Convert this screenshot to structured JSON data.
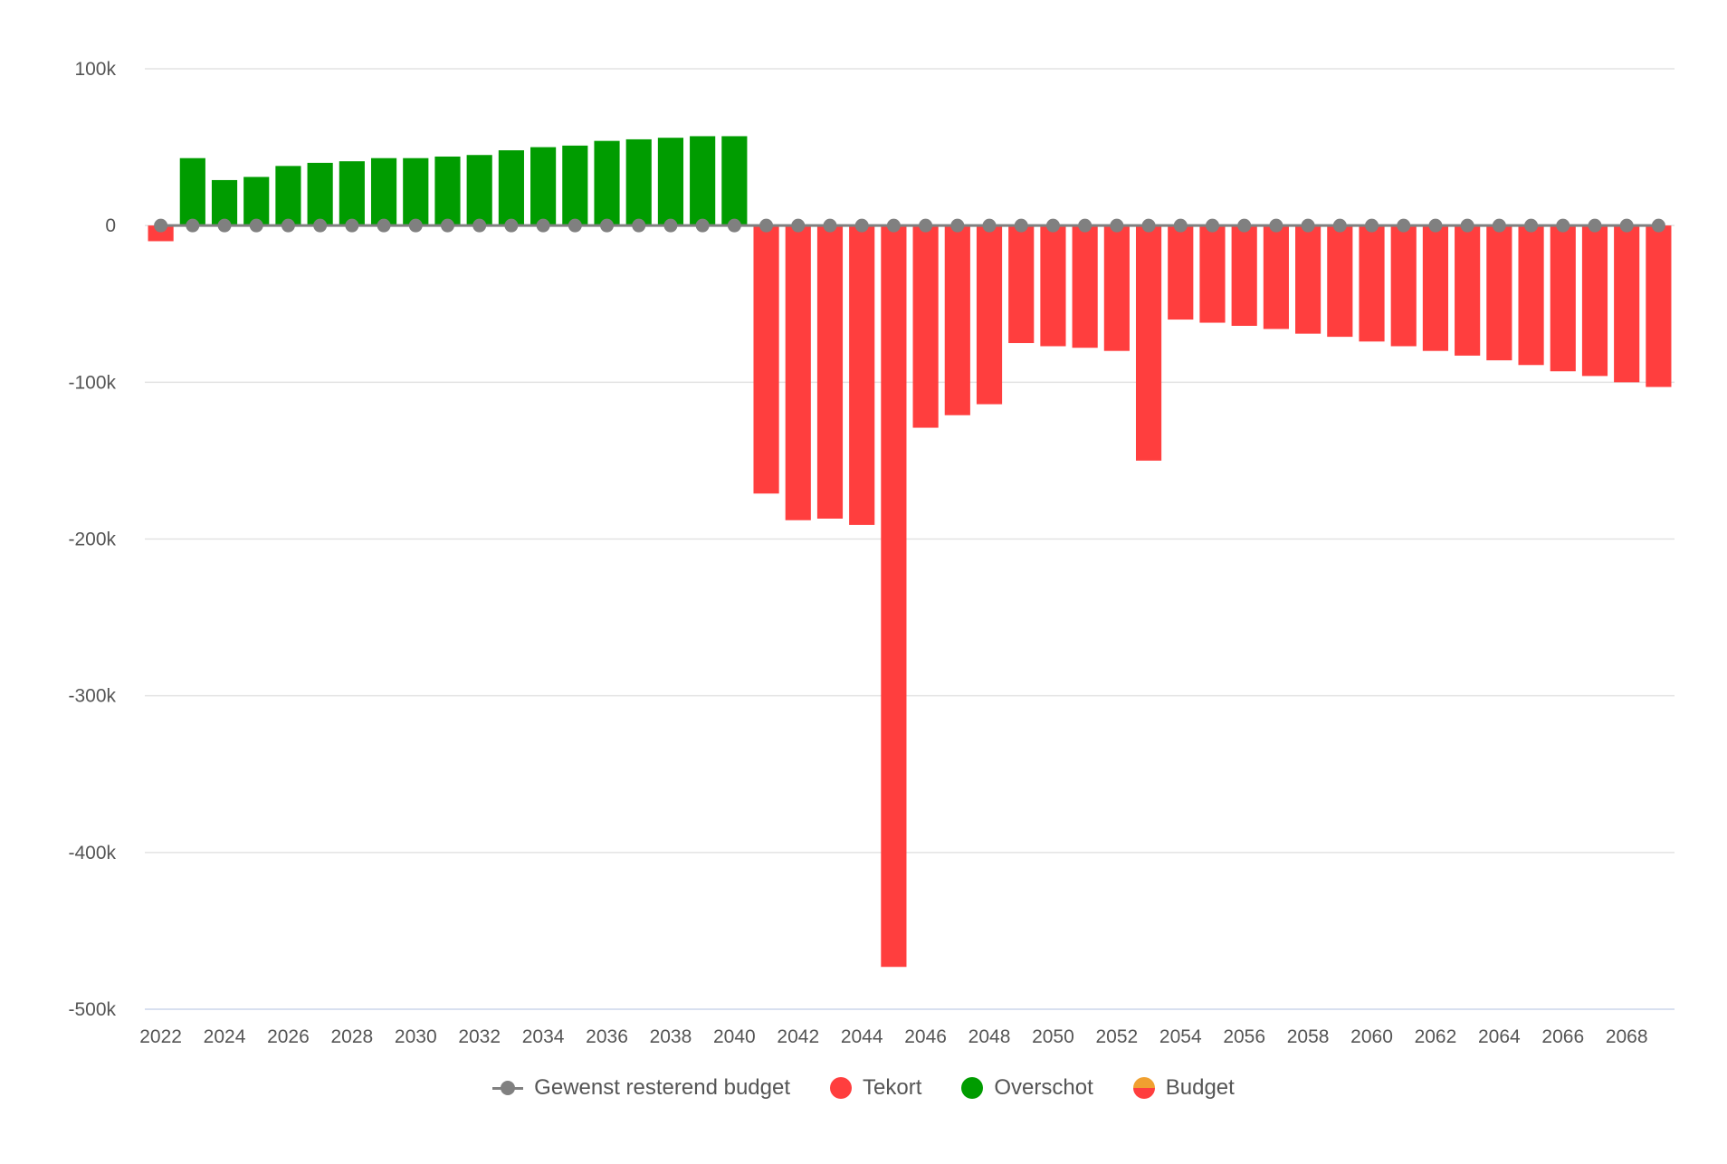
{
  "chart_data": {
    "type": "bar",
    "x": [
      2022,
      2023,
      2024,
      2025,
      2026,
      2027,
      2028,
      2029,
      2030,
      2031,
      2032,
      2033,
      2034,
      2035,
      2036,
      2037,
      2038,
      2039,
      2040,
      2041,
      2042,
      2043,
      2044,
      2045,
      2046,
      2047,
      2048,
      2049,
      2050,
      2051,
      2052,
      2053,
      2054,
      2055,
      2056,
      2057,
      2058,
      2059,
      2060,
      2061,
      2062,
      2063,
      2064,
      2065,
      2066,
      2067,
      2068,
      2069
    ],
    "values": [
      -10000,
      43000,
      29000,
      31000,
      38000,
      40000,
      41000,
      43000,
      43000,
      44000,
      45000,
      48000,
      50000,
      51000,
      54000,
      55000,
      56000,
      57000,
      57000,
      -171000,
      -188000,
      -187000,
      -191000,
      -473000,
      -129000,
      -121000,
      -114000,
      -75000,
      -77000,
      -78000,
      -80000,
      -150000,
      -60000,
      -62000,
      -64000,
      -66000,
      -69000,
      -71000,
      -74000,
      -77000,
      -80000,
      -83000,
      -86000,
      -89000,
      -93000,
      -96000,
      -100000,
      -103000
    ],
    "line_series": {
      "name": "Gewenst resterend budget",
      "values": [
        0,
        0,
        0,
        0,
        0,
        0,
        0,
        0,
        0,
        0,
        0,
        0,
        0,
        0,
        0,
        0,
        0,
        0,
        0,
        0,
        0,
        0,
        0,
        0,
        0,
        0,
        0,
        0,
        0,
        0,
        0,
        0,
        0,
        0,
        0,
        0,
        0,
        0,
        0,
        0,
        0,
        0,
        0,
        0,
        0,
        0,
        0,
        0
      ]
    },
    "ylim": [
      -500000,
      100000
    ],
    "y_ticks": [
      {
        "value": 100000,
        "label": "100k"
      },
      {
        "value": 0,
        "label": "0"
      },
      {
        "value": -100000,
        "label": "-100k"
      },
      {
        "value": -200000,
        "label": "-200k"
      },
      {
        "value": -300000,
        "label": "-300k"
      },
      {
        "value": -400000,
        "label": "-400k"
      },
      {
        "value": -500000,
        "label": "-500k"
      }
    ],
    "x_tick_labels": [
      "2022",
      "2024",
      "2026",
      "2028",
      "2030",
      "2032",
      "2034",
      "2036",
      "2038",
      "2040",
      "2042",
      "2044",
      "2046",
      "2048",
      "2050",
      "2052",
      "2054",
      "2056",
      "2058",
      "2060",
      "2062",
      "2064",
      "2066",
      "2068"
    ],
    "grid": true,
    "legend_position": "bottom-center",
    "colors": {
      "tekort": "#ff3e3e",
      "overschot": "#009c00",
      "line": "#808080",
      "budget_top": "#f0a030",
      "budget_bottom": "#ff3e3e"
    }
  },
  "legend": {
    "items": [
      {
        "label": "Gewenst resterend budget"
      },
      {
        "label": "Tekort"
      },
      {
        "label": "Overschot"
      },
      {
        "label": "Budget"
      }
    ]
  }
}
